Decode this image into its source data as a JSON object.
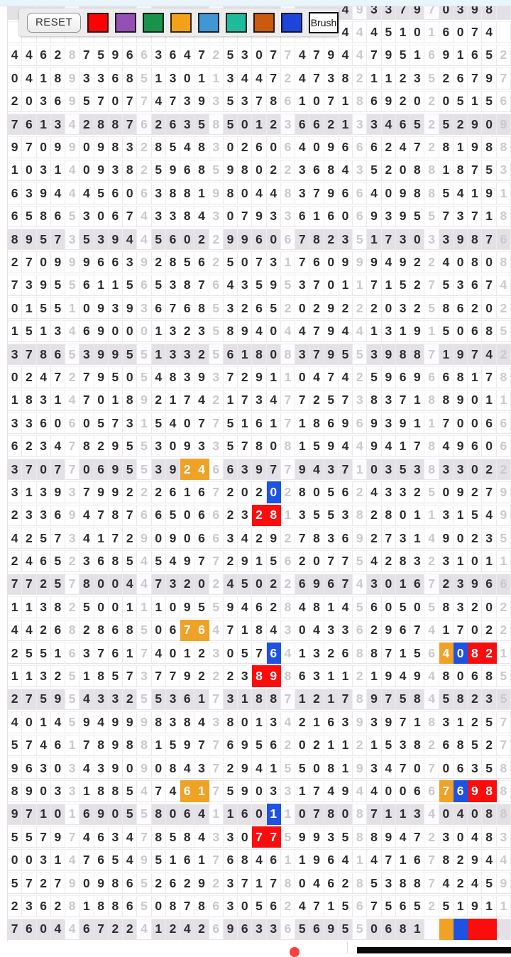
{
  "toolbar": {
    "reset_label": "RESET",
    "brush_label": "Brush",
    "swatches": [
      {
        "name": "red",
        "color": "#fe0101"
      },
      {
        "name": "purple",
        "color": "#9450b2"
      },
      {
        "name": "green",
        "color": "#17934a"
      },
      {
        "name": "orange",
        "color": "#f3a118"
      },
      {
        "name": "light-blue",
        "color": "#4197d4"
      },
      {
        "name": "teal",
        "color": "#1fba9b"
      },
      {
        "name": "rust-orange",
        "color": "#ca5a0c"
      },
      {
        "name": "blue",
        "color": "#1e45da"
      }
    ]
  },
  "grid": {
    "shaded_row_bg": "#e4e1e6",
    "faded_digit_color": "#cbc7cc",
    "digit_color": "#2d2b2f",
    "mark_colors": {
      "orange": "#f0a227",
      "blue": "#1d52e2",
      "red": "#fb0d0d"
    },
    "rows": [
      {
        "shaded": true,
        "d": "                       49337970398 6",
        "marks": {}
      },
      {
        "shaded": false,
        "d": "                       44451016074 2",
        "marks": {}
      },
      {
        "shaded": false,
        "d": "44628759663647253077479447951691652",
        "marks": {}
      },
      {
        "shaded": false,
        "d": "04189336851301134472473821123526797",
        "marks": {}
      },
      {
        "shaded": false,
        "d": "20369570774739353786107186920205156",
        "marks": {}
      },
      {
        "shaded": true,
        "d": "76134288762635850123662133465252909",
        "marks": {}
      },
      {
        "shaded": false,
        "d": "97099098328548302606409666247281988",
        "marks": {}
      },
      {
        "shaded": false,
        "d": "10314093825968598022368435208818753",
        "marks": {}
      },
      {
        "shaded": false,
        "d": "63944456063881980448379664098854191",
        "marks": {}
      },
      {
        "shaded": false,
        "d": "65865306743384307933616069395573718",
        "marks": {}
      },
      {
        "shaded": true,
        "d": "89573539445602299606782351730339876",
        "marks": {}
      },
      {
        "shaded": false,
        "d": "27099966392856250731760999492240808",
        "marks": {}
      },
      {
        "shaded": false,
        "d": "73955611565387643595370117152753674",
        "marks": {}
      },
      {
        "shaded": false,
        "d": "01551093936768532652029222032586202",
        "marks": {}
      },
      {
        "shaded": false,
        "d": "15134690001323589404479441319150685",
        "marks": {}
      },
      {
        "shaded": true,
        "d": "37865399551332561808379553988719742",
        "marks": {}
      },
      {
        "shaded": false,
        "d": "02472795054839372911047425969668178",
        "marks": {}
      },
      {
        "shaded": false,
        "d": "18314701892174217347725738371889011",
        "marks": {}
      },
      {
        "shaded": false,
        "d": "33606057315407751617186969391170066",
        "marks": {}
      },
      {
        "shaded": false,
        "d": "62347829553093357808159449417849606",
        "marks": {}
      },
      {
        "shaded": true,
        "d": "37077069553924663977943710353833022",
        "marks": {
          "12": "orange",
          "13": "orange"
        }
      },
      {
        "shaded": false,
        "d": "31393799222616720202805624332509279",
        "marks": {
          "18": "blue"
        }
      },
      {
        "shaded": false,
        "d": "23369478766506623281355382801131549",
        "marks": {
          "17": "red",
          "18": "red"
        }
      },
      {
        "shaded": false,
        "d": "42573417290906634292783692731490235",
        "marks": {}
      },
      {
        "shaded": false,
        "d": "24652368545497729156207754283231011",
        "marks": {}
      },
      {
        "shaded": true,
        "d": "77257800447320245022696743016723966",
        "marks": {}
      },
      {
        "shaded": false,
        "d": "11382500111095594628481456050583202",
        "marks": {}
      },
      {
        "shaded": false,
        "d": "44268286850676471843043362967417022",
        "marks": {
          "12": "orange",
          "13": "orange"
        }
      },
      {
        "shaded": false,
        "d": "25516376174012305764132688715640821",
        "marks": {
          "18": "blue",
          "30": "orange",
          "31": "blue",
          "32": "red",
          "33": "red"
        }
      },
      {
        "shaded": false,
        "d": "11325185737792223898631121949480685",
        "marks": {
          "17": "red",
          "18": "red"
        }
      },
      {
        "shaded": true,
        "d": "27595433255361731887121789758458235",
        "marks": {}
      },
      {
        "shaded": false,
        "d": "40145949998384380134216393971831257",
        "marks": {}
      },
      {
        "shaded": false,
        "d": "57461789881597769562021121538268527",
        "marks": {}
      },
      {
        "shaded": false,
        "d": "96303439090843729415508193470706358",
        "marks": {}
      },
      {
        "shaded": false,
        "d": "89033188547461759033174944006676988",
        "marks": {
          "12": "orange",
          "13": "orange",
          "30": "orange",
          "31": "blue",
          "32": "red",
          "33": "red"
        }
      },
      {
        "shaded": true,
        "d": "97101690558064116011078087113404088",
        "marks": {
          "18": "blue"
        }
      },
      {
        "shaded": false,
        "d": "55797463478584330775993588947230483",
        "marks": {
          "17": "red",
          "18": "red"
        }
      },
      {
        "shaded": false,
        "d": "00314765495161768461196414716782944",
        "marks": {}
      },
      {
        "shaded": false,
        "d": "57279098652629237178046285388742459",
        "marks": {}
      },
      {
        "shaded": false,
        "d": "23628188650878630562471567565251911",
        "marks": {}
      },
      {
        "shaded": true,
        "d": "76044672241242696336569550681      ",
        "marks": {
          "30": "orange",
          "31": "blue",
          "32": "red",
          "33": "red"
        }
      }
    ]
  }
}
